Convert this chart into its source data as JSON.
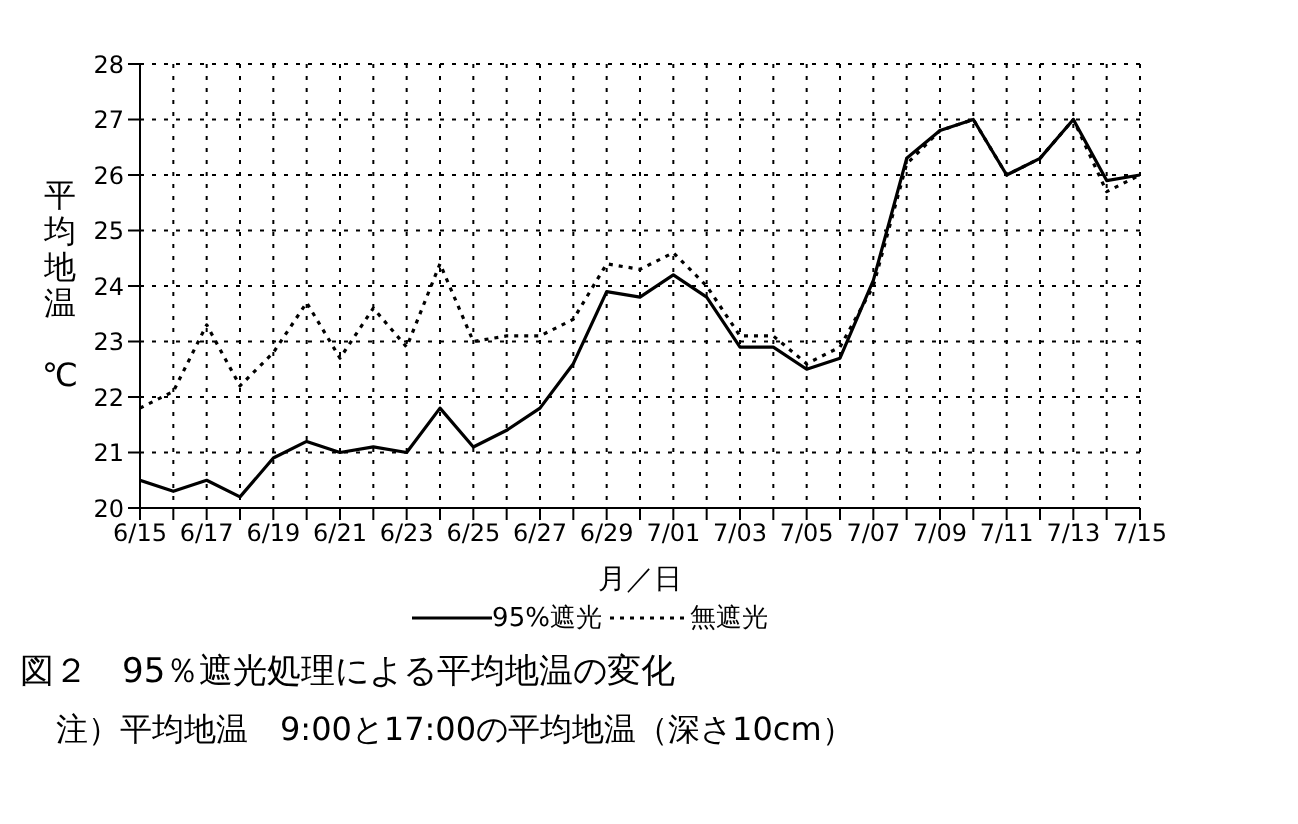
{
  "chart_data": {
    "type": "line",
    "title": "図２　95％遮光処理による平均地温の変化",
    "annotations": [
      "注）平均地温　9:00と17:00の平均地温（深さ10cm）"
    ],
    "xlabel": "月／日",
    "ylabel": "平均地温 ℃",
    "categories": [
      "6/15",
      null,
      "6/17",
      null,
      "6/19",
      null,
      "6/21",
      null,
      "6/23",
      null,
      "6/25",
      null,
      "6/27",
      null,
      "6/29",
      null,
      "7/01",
      null,
      "7/03",
      null,
      "7/05",
      null,
      "7/07",
      null,
      "7/09",
      null,
      "7/11",
      null,
      "7/13",
      null,
      "7/15"
    ],
    "series": [
      {
        "name": "95%遮光",
        "color": "#000000",
        "line_style": "solid",
        "values": [
          20.5,
          20.3,
          20.5,
          20.2,
          20.9,
          21.2,
          21.0,
          21.1,
          21.0,
          21.8,
          21.1,
          21.4,
          21.8,
          22.6,
          23.9,
          23.8,
          24.2,
          23.8,
          22.9,
          22.9,
          22.5,
          22.7,
          24.1,
          26.3,
          26.8,
          27.0,
          26.0,
          26.3,
          27.0,
          25.9,
          26.0
        ]
      },
      {
        "name": "無遮光",
        "color": "#000000",
        "line_style": "dotted",
        "values": [
          21.8,
          22.1,
          23.3,
          22.2,
          22.8,
          23.7,
          22.7,
          23.6,
          22.9,
          24.4,
          23.0,
          23.1,
          23.1,
          23.4,
          24.4,
          24.3,
          24.6,
          24.0,
          23.1,
          23.1,
          22.6,
          22.9,
          24.0,
          26.2,
          26.8,
          27.0,
          26.0,
          26.3,
          27.0,
          25.7,
          26.0
        ]
      }
    ],
    "ylim": [
      20,
      28
    ],
    "yticks": [
      20,
      21,
      22,
      23,
      24,
      25,
      26,
      27,
      28
    ],
    "grid": true,
    "legend": "bottom",
    "marker": "none"
  }
}
